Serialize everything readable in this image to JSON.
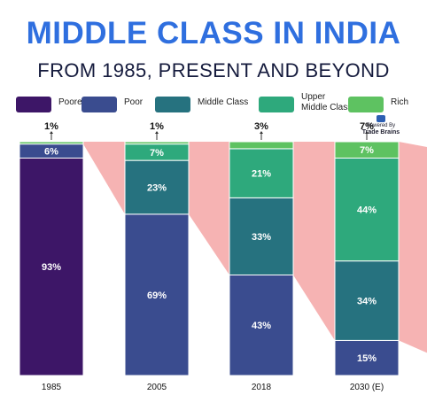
{
  "title": "MIDDLE CLASS IN INDIA",
  "subtitle": "FROM 1985, PRESENT AND BEYOND",
  "watermark": {
    "line1": "Powered By",
    "line2": "Trade Brains"
  },
  "legend": [
    {
      "label": "Poorest",
      "color": "#3d1667",
      "two_line": false
    },
    {
      "label": "Poor",
      "color": "#3a4c8f",
      "two_line": false
    },
    {
      "label": "Middle Class",
      "color": "#26727f",
      "two_line": false
    },
    {
      "label": "Upper Middle Class",
      "color": "#2ea97c",
      "two_line": true
    },
    {
      "label": "Rich",
      "color": "#5ec261",
      "two_line": false
    }
  ],
  "chart_data": {
    "type": "bar",
    "stacked": true,
    "categories": [
      "1985",
      "2005",
      "2018",
      "2030 (E)"
    ],
    "series": [
      {
        "name": "Poorest",
        "color": "#3d1667",
        "values": [
          93,
          0,
          0,
          0
        ]
      },
      {
        "name": "Poor",
        "color": "#3a4c8f",
        "values": [
          6,
          69,
          43,
          15
        ]
      },
      {
        "name": "Middle Class",
        "color": "#26727f",
        "values": [
          0,
          23,
          33,
          34
        ]
      },
      {
        "name": "Upper Middle Class",
        "color": "#2ea97c",
        "values": [
          0,
          7,
          21,
          44
        ]
      },
      {
        "name": "Rich",
        "color": "#5ec261",
        "values": [
          1,
          1,
          3,
          7
        ]
      }
    ],
    "segment_labels": [
      [
        "93%",
        "6%",
        "",
        "",
        "1%"
      ],
      [
        "",
        "69%",
        "23%",
        "7%",
        "1%"
      ],
      [
        "",
        "43%",
        "33%",
        "21%",
        "3%"
      ],
      [
        "",
        "15%",
        "34%",
        "44%",
        "7%"
      ]
    ],
    "callout_labels": [
      "1%",
      "1%",
      "3%",
      "7%"
    ],
    "ylim": [
      0,
      100
    ],
    "legend_position": "top",
    "band_color": "#f4a6a6"
  }
}
